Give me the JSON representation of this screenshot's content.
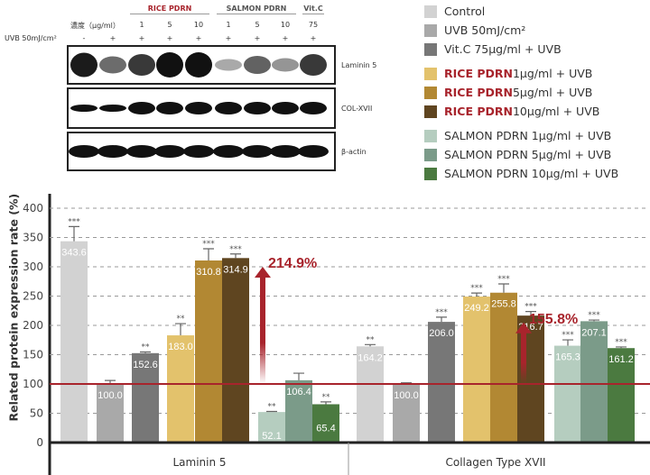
{
  "blot": {
    "groups": [
      "RICE PDRN",
      "SALMON PDRN",
      "Vit.C"
    ],
    "conc_label": "濃度（μg/ml）",
    "uvb_label": "UVB 50mJ/cm²",
    "conc": [
      "",
      "",
      "1",
      "5",
      "10",
      "1",
      "5",
      "10",
      "75"
    ],
    "uvb": [
      "-",
      "+",
      "+",
      "+",
      "+",
      "+",
      "+",
      "+",
      "+"
    ],
    "rows": [
      "Laminin 5",
      "COL-XVII",
      "β-actin"
    ],
    "laminin_intensity": [
      0.95,
      0.55,
      0.8,
      1,
      1,
      0.25,
      0.6,
      0.35,
      0.8
    ]
  },
  "legend": [
    {
      "prefix": "",
      "text": "Control",
      "color": "#d2d2d2"
    },
    {
      "prefix": "",
      "text": "UVB 50mJ/cm²",
      "color": "#a9a9a9"
    },
    {
      "prefix": "",
      "text": "Vit.C 75μg/ml + UVB",
      "color": "#777777"
    },
    {
      "prefix": "RICE PDRN",
      "text": " 1μg/ml + UVB",
      "color": "#e3c26c"
    },
    {
      "prefix": "RICE PDRN",
      "text": " 5μg/ml + UVB",
      "color": "#b28833"
    },
    {
      "prefix": "RICE PDRN",
      "text": " 10μg/ml + UVB",
      "color": "#5f4520"
    },
    {
      "prefix": "",
      "text": "SALMON PDRN 1μg/ml + UVB",
      "color": "#b5cdbf"
    },
    {
      "prefix": "",
      "text": "SALMON PDRN 5μg/ml + UVB",
      "color": "#7b9b89"
    },
    {
      "prefix": "",
      "text": "SALMON PDRN 10μg/ml + UVB",
      "color": "#4b7a40"
    }
  ],
  "chart_data": {
    "type": "bar",
    "ylabel": "Related protein expression rate (%)",
    "ylim": [
      0,
      400
    ],
    "yticks": [
      0,
      50,
      100,
      150,
      200,
      250,
      300,
      350,
      400
    ],
    "grid": true,
    "reference_line": 100,
    "categories": [
      "Laminin 5",
      "Collagen Type XVII"
    ],
    "series_colors": [
      "#d2d2d2",
      "#a9a9a9",
      "#777777",
      "#e3c26c",
      "#b28833",
      "#5f4520",
      "#b5cdbf",
      "#7b9b89",
      "#4b7a40"
    ],
    "groups": [
      {
        "name": "Laminin 5",
        "values": [
          343.6,
          100.0,
          152.6,
          183.0,
          310.8,
          314.9,
          52.1,
          106.4,
          65.4
        ],
        "errors": [
          25,
          6,
          2,
          20,
          20,
          7,
          1,
          12,
          4
        ],
        "sig": [
          "***",
          "",
          "**",
          "**",
          "***",
          "***",
          "**",
          "",
          "**"
        ],
        "annotation": "214.9%"
      },
      {
        "name": "Collagen Type XVII",
        "values": [
          164.2,
          100.0,
          206.0,
          249.2,
          255.8,
          216.7,
          165.3,
          207.1,
          161.2
        ],
        "errors": [
          3,
          2,
          8,
          6,
          15,
          7,
          10,
          2,
          2
        ],
        "sig": [
          "**",
          "",
          "***",
          "***",
          "***",
          "***",
          "***",
          "***",
          "***"
        ],
        "annotation": "155.8%"
      }
    ]
  }
}
